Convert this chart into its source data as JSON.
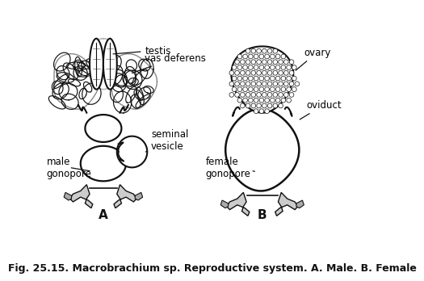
{
  "fig_caption": "Fig. 25.15. Macrobrachium sp. Reproductive system. A. Male. B. Female",
  "caption_fontsize": 9,
  "caption_fontstyle": "bold",
  "bg_color": "#ffffff",
  "label_A": "A",
  "label_B": "B",
  "label_fontsize": 11
}
